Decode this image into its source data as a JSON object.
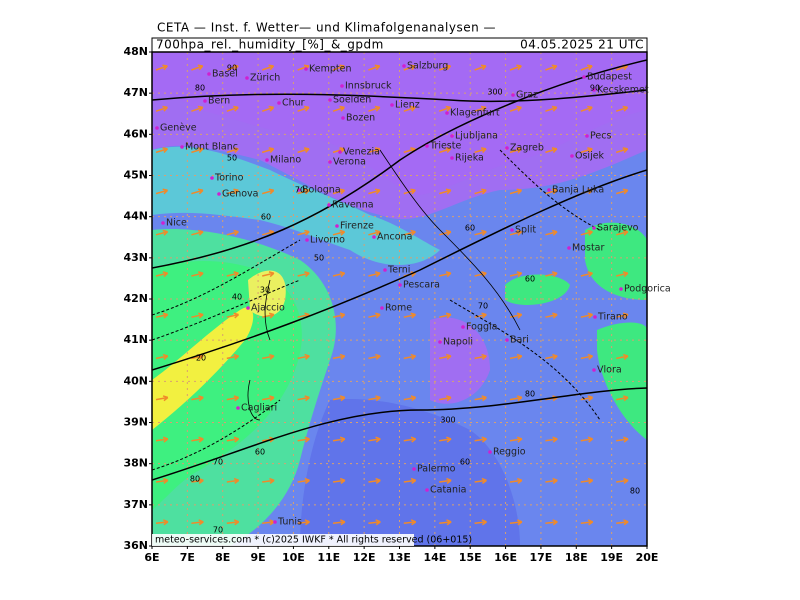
{
  "header": {
    "title": "CETA — Inst. f. Wetter— und Klimafolgenanalysen —",
    "parameter": "700hpa_rel._humidity_[%]_&_gpdm",
    "valid_time": "04.05.2025 21 UTC"
  },
  "map": {
    "lat_labels": [
      "48N",
      "47N",
      "46N",
      "45N",
      "44N",
      "43N",
      "42N",
      "41N",
      "40N",
      "39N",
      "38N",
      "37N",
      "36N"
    ],
    "lon_labels": [
      "6E",
      "7E",
      "8E",
      "9E",
      "10E",
      "11E",
      "12E",
      "13E",
      "14E",
      "15E",
      "16E",
      "17E",
      "18E",
      "19E",
      "20E"
    ],
    "cities": [
      "Basel",
      "Zürich",
      "Kempten",
      "Salzburg",
      "Budapest",
      "Innsbruck",
      "Bern",
      "Chur",
      "Graz",
      "Kecskemet",
      "Bozen",
      "Genève",
      "Klagenfurt",
      "Ljubljana",
      "Zagreb",
      "Pecs",
      "Milano",
      "Verona",
      "Venezia",
      "Trieste",
      "Rijeka",
      "Osijek",
      "Torino",
      "Bologna",
      "Banja Luka",
      "Genova",
      "Ravenna",
      "Nice",
      "Firenze",
      "Ancona",
      "Split",
      "Sarajevo",
      "Livorno",
      "Mostar",
      "Terni",
      "Pescara",
      "Podgorica",
      "Ajaccio",
      "Rome",
      "Foggia",
      "Tirano",
      "Bari",
      "Napoli",
      "Vlora",
      "Cagliari",
      "Palermo",
      "Reggio",
      "Catania",
      "Tunis",
      "Lienz",
      "Mont Blanc",
      "Soelden"
    ],
    "contour_labels": [
      90,
      80,
      90,
      300,
      50,
      70,
      60,
      60,
      60,
      30,
      40,
      70,
      20,
      60,
      300,
      70,
      80,
      80,
      60,
      80,
      70,
      50
    ],
    "footer": "meteo-services.com * (c)2025 IWKF * All rights reserved (06+015)"
  }
}
